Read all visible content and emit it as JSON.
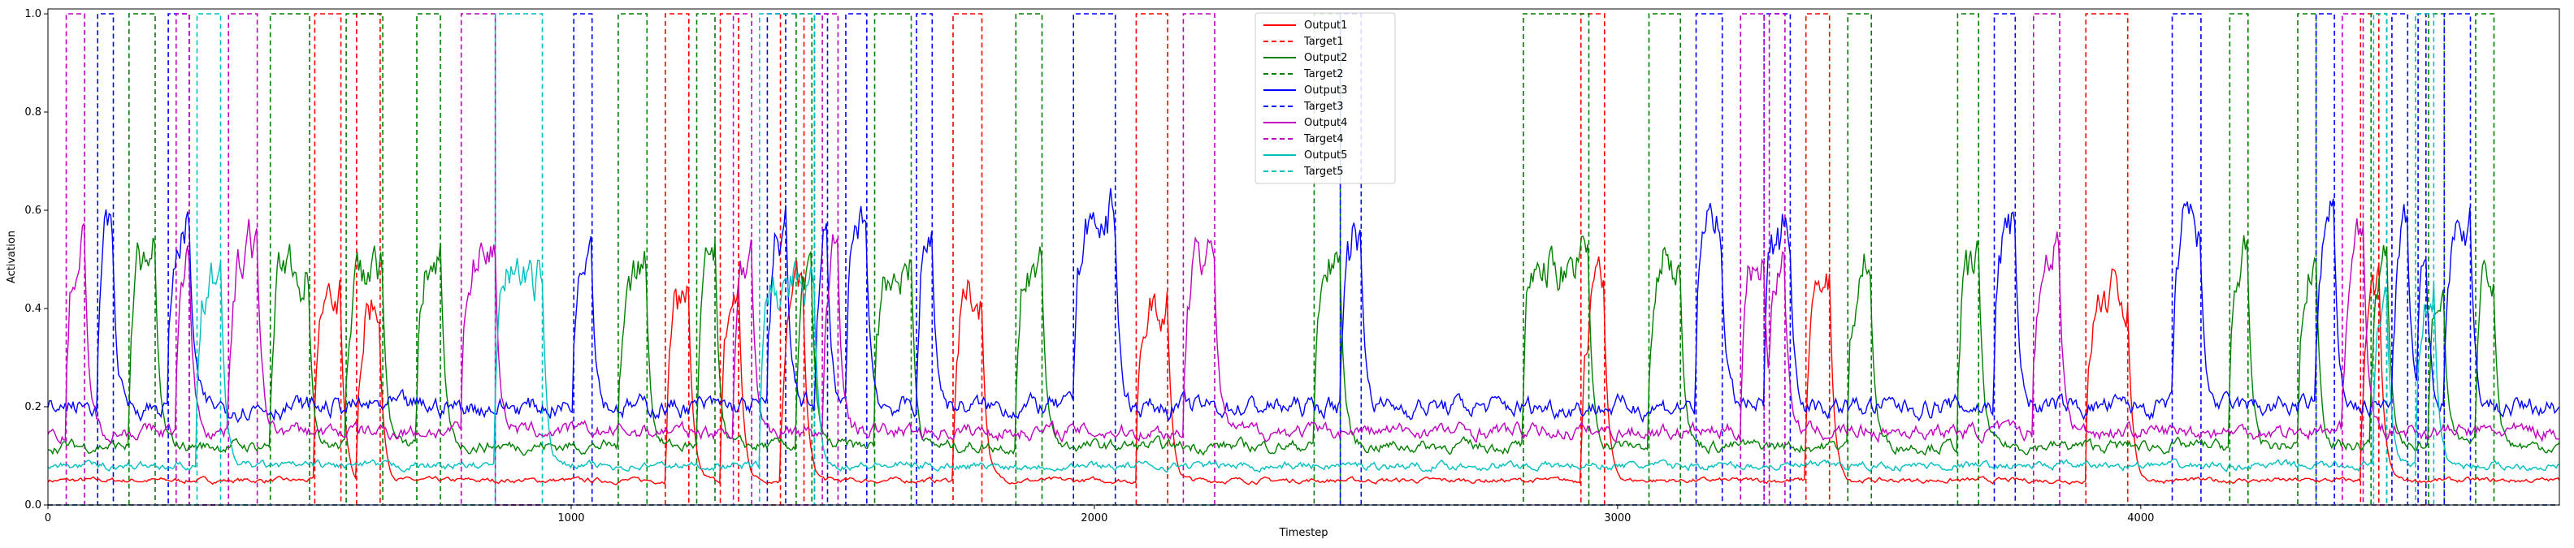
{
  "chart_data": {
    "type": "line",
    "xlabel": "Timestep",
    "ylabel": "Activation",
    "xlim": [
      0,
      4800
    ],
    "ylim": [
      0,
      1.01
    ],
    "grid": false,
    "legend_placement": "top-center",
    "x_ticks": [
      0,
      1000,
      2000,
      3000,
      4000
    ],
    "y_ticks": [
      0.0,
      0.2,
      0.4,
      0.6,
      0.8,
      1.0
    ],
    "x_tick_labels": [
      "0",
      "1000",
      "2000",
      "3000",
      "4000"
    ],
    "y_tick_labels": [
      "0.0",
      "0.2",
      "0.4",
      "0.6",
      "0.8",
      "1.0"
    ],
    "colors": {
      "series1": "#ff0000",
      "series2": "#008000",
      "series3": "#0000ff",
      "series4": "#bf00bf",
      "series5": "#00bfbf"
    },
    "series": [
      {
        "name": "Output1",
        "color": "#ff0000",
        "dashed": false,
        "level": 0.05
      },
      {
        "name": "Target1",
        "color": "#ff0000",
        "dashed": true,
        "pulses": [
          [
            510,
            560
          ],
          [
            590,
            635
          ],
          [
            1180,
            1225
          ],
          [
            1285,
            1320
          ],
          [
            1400,
            1445
          ],
          [
            1730,
            1785
          ],
          [
            2080,
            2140
          ],
          [
            2930,
            2975
          ],
          [
            3360,
            3405
          ],
          [
            3895,
            3975
          ],
          [
            4420,
            4455
          ]
        ]
      },
      {
        "name": "Output2",
        "color": "#008000",
        "dashed": false,
        "level": 0.12
      },
      {
        "name": "Target2",
        "color": "#008000",
        "dashed": true,
        "pulses": [
          [
            155,
            205
          ],
          [
            425,
            500
          ],
          [
            570,
            640
          ],
          [
            705,
            750
          ],
          [
            1090,
            1145
          ],
          [
            1240,
            1275
          ],
          [
            1430,
            1460
          ],
          [
            1580,
            1650
          ],
          [
            1850,
            1900
          ],
          [
            2420,
            2470
          ],
          [
            2820,
            2945
          ],
          [
            3060,
            3120
          ],
          [
            3440,
            3485
          ],
          [
            3650,
            3690
          ],
          [
            4170,
            4205
          ],
          [
            4300,
            4335
          ],
          [
            4440,
            4470
          ],
          [
            4550,
            4580
          ],
          [
            4640,
            4675
          ]
        ]
      },
      {
        "name": "Output3",
        "color": "#0000ff",
        "dashed": false,
        "level": 0.2
      },
      {
        "name": "Target3",
        "color": "#0000ff",
        "dashed": true,
        "pulses": [
          [
            95,
            125
          ],
          [
            230,
            270
          ],
          [
            1005,
            1040
          ],
          [
            1375,
            1410
          ],
          [
            1465,
            1490
          ],
          [
            1525,
            1565
          ],
          [
            1660,
            1690
          ],
          [
            1960,
            2040
          ],
          [
            2470,
            2510
          ],
          [
            3150,
            3200
          ],
          [
            3280,
            3330
          ],
          [
            3720,
            3760
          ],
          [
            4060,
            4115
          ],
          [
            4335,
            4370
          ],
          [
            4480,
            4510
          ],
          [
            4530,
            4545
          ],
          [
            4580,
            4630
          ]
        ]
      },
      {
        "name": "Output4",
        "color": "#bf00bf",
        "dashed": false,
        "level": 0.15
      },
      {
        "name": "Target4",
        "color": "#bf00bf",
        "dashed": true,
        "pulses": [
          [
            35,
            70
          ],
          [
            245,
            270
          ],
          [
            345,
            400
          ],
          [
            790,
            855
          ],
          [
            1310,
            1345
          ],
          [
            1480,
            1510
          ],
          [
            2170,
            2230
          ],
          [
            3235,
            3280
          ],
          [
            3290,
            3320
          ],
          [
            3795,
            3845
          ],
          [
            4385,
            4425
          ]
        ]
      },
      {
        "name": "Output5",
        "color": "#00bfbf",
        "dashed": false,
        "level": 0.08
      },
      {
        "name": "Target5",
        "color": "#00bfbf",
        "dashed": true,
        "pulses": [
          [
            285,
            330
          ],
          [
            855,
            945
          ],
          [
            1360,
            1465
          ],
          [
            4445,
            4470
          ],
          [
            4525,
            4560
          ]
        ]
      }
    ]
  }
}
